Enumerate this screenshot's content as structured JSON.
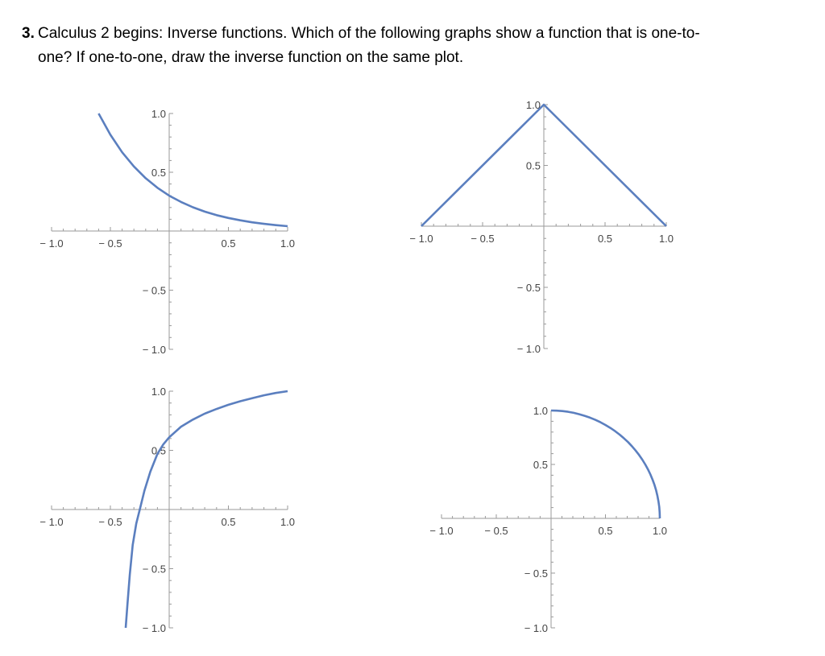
{
  "question": {
    "number": "3.",
    "line1": "Calculus 2 begins: Inverse functions.   Which of the following graphs show a function that is one-to-",
    "line2": "one? If one-to-one, draw the inverse function on the same plot."
  },
  "colors": {
    "curve": "#5b7fbf",
    "axis": "#9a9a9a",
    "text": "#444444"
  },
  "chart_data": [
    {
      "type": "line",
      "position": "top-left",
      "xlim": [
        -1,
        1
      ],
      "ylim": [
        -1,
        1
      ],
      "x_tick_labels": [
        "-1.0",
        "-0.5",
        "0.5",
        "1.0"
      ],
      "x_ticks": [
        -1,
        -0.5,
        0.5,
        1
      ],
      "y_tick_labels": [
        "-1.0",
        "-0.5",
        "0.5",
        "1.0"
      ],
      "y_ticks": [
        -1,
        -0.5,
        0.5,
        1
      ],
      "series": [
        {
          "x": [
            -0.6,
            -0.5,
            -0.4,
            -0.3,
            -0.2,
            -0.1,
            0,
            0.1,
            0.2,
            0.3,
            0.4,
            0.5,
            0.6,
            0.7,
            0.8,
            0.9,
            1.0
          ],
          "y": [
            1.0,
            0.819,
            0.67,
            0.549,
            0.449,
            0.368,
            0.301,
            0.247,
            0.202,
            0.165,
            0.135,
            0.111,
            0.091,
            0.074,
            0.061,
            0.05,
            0.041
          ]
        }
      ]
    },
    {
      "type": "line",
      "position": "top-right",
      "xlim": [
        -1,
        1
      ],
      "ylim": [
        -1,
        1
      ],
      "x_tick_labels": [
        "-1.0",
        "-0.5",
        "0.5",
        "1.0"
      ],
      "x_ticks": [
        -1,
        -0.5,
        0.5,
        1
      ],
      "y_tick_labels": [
        "-1.0",
        "-0.5",
        "0.5",
        "1.0"
      ],
      "y_ticks": [
        -1,
        -0.5,
        0.5,
        1
      ],
      "series": [
        {
          "x": [
            -1,
            0,
            1
          ],
          "y": [
            0,
            1,
            0
          ]
        }
      ]
    },
    {
      "type": "line",
      "position": "bottom-left",
      "xlim": [
        -1,
        1
      ],
      "ylim": [
        -1,
        1
      ],
      "x_tick_labels": [
        "-1.0",
        "-0.5",
        "0.5",
        "1.0"
      ],
      "x_ticks": [
        -1,
        -0.5,
        0.5,
        1
      ],
      "y_tick_labels": [
        "-1.0",
        "-0.5",
        "0.5",
        "1.0"
      ],
      "y_ticks": [
        -1,
        -0.5,
        0.5,
        1
      ],
      "series": [
        {
          "x": [
            -0.37,
            -0.355,
            -0.335,
            -0.31,
            -0.28,
            -0.25,
            -0.21,
            -0.16,
            -0.1,
            -0.05,
            0,
            0.1,
            0.2,
            0.3,
            0.4,
            0.5,
            0.6,
            0.7,
            0.8,
            0.9,
            1.0
          ],
          "y": [
            -1.0,
            -0.8,
            -0.55,
            -0.3,
            -0.12,
            0,
            0.16,
            0.32,
            0.47,
            0.55,
            0.61,
            0.7,
            0.76,
            0.81,
            0.85,
            0.885,
            0.915,
            0.94,
            0.965,
            0.985,
            1.0
          ]
        }
      ]
    },
    {
      "type": "line",
      "position": "bottom-right",
      "xlim": [
        -1,
        1
      ],
      "ylim": [
        -1,
        1
      ],
      "x_tick_labels": [
        "-1.0",
        "-0.5",
        "0.5",
        "1.0"
      ],
      "x_ticks": [
        -1,
        -0.5,
        0.5,
        1
      ],
      "y_tick_labels": [
        "-1.0",
        "-0.5",
        "0.5",
        "1.0"
      ],
      "y_ticks": [
        -1,
        -0.5,
        0.5,
        1
      ],
      "series": [
        {
          "curve": "quarter-circle",
          "x": [
            0,
            0.2,
            0.4,
            0.6,
            0.8,
            0.9,
            0.95,
            1.0
          ],
          "y": [
            1,
            0.98,
            0.917,
            0.8,
            0.6,
            0.436,
            0.312,
            0
          ]
        }
      ]
    }
  ]
}
